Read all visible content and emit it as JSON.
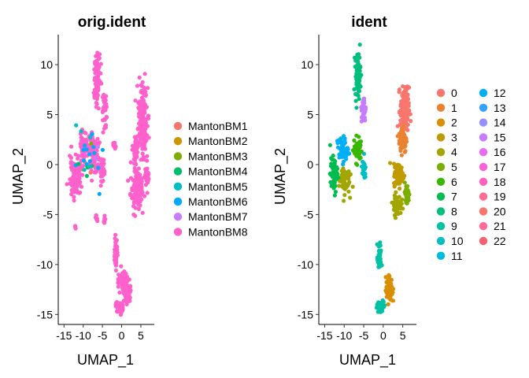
{
  "chart_data": [
    {
      "type": "scatter",
      "title": "orig.ident",
      "xlabel": "UMAP_1",
      "ylabel": "UMAP_2",
      "xlim": [
        -16.5,
        8.5
      ],
      "ylim": [
        -16,
        13
      ],
      "x_ticks": [
        -15,
        -10,
        -5,
        0,
        5
      ],
      "y_ticks": [
        -15,
        -10,
        -5,
        0,
        5,
        10
      ],
      "grid": false,
      "legend_position": "right",
      "series": [
        {
          "name": "MantonBM1",
          "color": "#F8766D"
        },
        {
          "name": "MantonBM2",
          "color": "#CD9600"
        },
        {
          "name": "MantonBM3",
          "color": "#7CAE00"
        },
        {
          "name": "MantonBM4",
          "color": "#00BE67"
        },
        {
          "name": "MantonBM5",
          "color": "#00BFC4"
        },
        {
          "name": "MantonBM6",
          "color": "#00A9FF"
        },
        {
          "name": "MantonBM7",
          "color": "#C77CFF"
        },
        {
          "name": "MantonBM8",
          "color": "#FF61CC"
        }
      ],
      "clusters": [
        {
          "center": [
            5.5,
            4.5
          ],
          "spread": [
            1.0,
            3.0
          ],
          "n": 200,
          "mix": [
            0,
            0,
            0,
            0,
            0,
            0,
            0,
            1
          ]
        },
        {
          "center": [
            3.5,
            1.5
          ],
          "spread": [
            0.6,
            1.5
          ],
          "n": 60,
          "mix": [
            0,
            0,
            0,
            0,
            0,
            0,
            0,
            1
          ]
        },
        {
          "center": [
            4.0,
            -2.5
          ],
          "spread": [
            1.5,
            1.6
          ],
          "n": 150,
          "mix": [
            0,
            0,
            0,
            0,
            0,
            0,
            0,
            1
          ]
        },
        {
          "center": [
            6.5,
            -1.0
          ],
          "spread": [
            0.6,
            0.8
          ],
          "n": 40,
          "mix": [
            0,
            0,
            0,
            0,
            0,
            0,
            0,
            1
          ]
        },
        {
          "center": [
            -6.5,
            8.5
          ],
          "spread": [
            0.8,
            2.5
          ],
          "n": 90,
          "mix": [
            0,
            0,
            0,
            0,
            0,
            0,
            0,
            1
          ]
        },
        {
          "center": [
            -4.5,
            6.0
          ],
          "spread": [
            0.5,
            1.5
          ],
          "n": 40,
          "mix": [
            0,
            0,
            0,
            0,
            0,
            0,
            0,
            1
          ]
        },
        {
          "center": [
            -7.5,
            1.2
          ],
          "spread": [
            1.5,
            1.8
          ],
          "n": 110,
          "mix": [
            0,
            0,
            0,
            0,
            0,
            0,
            0,
            1
          ]
        },
        {
          "center": [
            -10.0,
            2.0
          ],
          "spread": [
            0.8,
            1.2
          ],
          "n": 50,
          "mix": [
            0,
            0,
            0,
            0,
            0,
            0,
            0,
            1
          ]
        },
        {
          "center": [
            -12.0,
            -1.3
          ],
          "spread": [
            1.3,
            1.6
          ],
          "n": 120,
          "mix": [
            0,
            0,
            0,
            0,
            0,
            0,
            0,
            1
          ]
        },
        {
          "center": [
            -5.0,
            -0.5
          ],
          "spread": [
            0.6,
            1.0
          ],
          "n": 50,
          "mix": [
            0,
            0,
            0,
            0,
            0,
            0,
            0,
            1
          ]
        },
        {
          "center": [
            -2.0,
            2.0
          ],
          "spread": [
            0.5,
            0.3
          ],
          "n": 15,
          "mix": [
            0,
            0,
            0,
            0,
            0,
            0,
            0,
            1
          ]
        },
        {
          "center": [
            -1.5,
            -9.0
          ],
          "spread": [
            0.4,
            1.3
          ],
          "n": 50,
          "mix": [
            0,
            0,
            0,
            0,
            0,
            0,
            0,
            1
          ]
        },
        {
          "center": [
            0.5,
            -11.5
          ],
          "spread": [
            1.0,
            1.0
          ],
          "n": 60,
          "mix": [
            0,
            0,
            0,
            0,
            0,
            0,
            0,
            1
          ]
        },
        {
          "center": [
            1.5,
            -13.0
          ],
          "spread": [
            0.7,
            0.8
          ],
          "n": 70,
          "mix": [
            0,
            0,
            0,
            0,
            0,
            0,
            0,
            1
          ]
        },
        {
          "center": [
            -0.5,
            -14.3
          ],
          "spread": [
            1.0,
            0.5
          ],
          "n": 50,
          "mix": [
            0,
            0,
            0,
            0,
            0,
            0,
            0,
            1
          ]
        },
        {
          "center": [
            -6.5,
            -5.3
          ],
          "spread": [
            0.3,
            0.4
          ],
          "n": 8,
          "mix": [
            0,
            0,
            0,
            0,
            0,
            0,
            0,
            1
          ]
        },
        {
          "center": [
            -4.5,
            -5.5
          ],
          "spread": [
            0.3,
            0.4
          ],
          "n": 8,
          "mix": [
            0,
            0,
            0,
            0,
            0,
            0,
            0,
            1
          ]
        },
        {
          "center": [
            -12.0,
            -6.2
          ],
          "spread": [
            0.2,
            0.2
          ],
          "n": 3,
          "mix": [
            0,
            0,
            0,
            0,
            0,
            0,
            0,
            1
          ]
        },
        {
          "center": [
            -9.0,
            0.0
          ],
          "spread": [
            3.5,
            2.5
          ],
          "n": 30,
          "mix": [
            0.05,
            0.02,
            0.05,
            0.05,
            0.15,
            0.6,
            0.05,
            0.03
          ]
        }
      ]
    },
    {
      "type": "scatter",
      "title": "ident",
      "xlabel": "UMAP_1",
      "ylabel": "UMAP_2",
      "xlim": [
        -16.5,
        8.5
      ],
      "ylim": [
        -16,
        13
      ],
      "x_ticks": [
        -15,
        -10,
        -5,
        0,
        5
      ],
      "y_ticks": [
        -15,
        -10,
        -5,
        0,
        5,
        10
      ],
      "grid": false,
      "legend_position": "right",
      "legend_columns": 2,
      "series": [
        {
          "name": "0",
          "color": "#F8766D"
        },
        {
          "name": "1",
          "color": "#EA8331"
        },
        {
          "name": "2",
          "color": "#D89000"
        },
        {
          "name": "3",
          "color": "#C09B00"
        },
        {
          "name": "4",
          "color": "#A3A500"
        },
        {
          "name": "5",
          "color": "#7CAE00"
        },
        {
          "name": "6",
          "color": "#39B600"
        },
        {
          "name": "7",
          "color": "#00BB4E"
        },
        {
          "name": "8",
          "color": "#00BF7D"
        },
        {
          "name": "9",
          "color": "#00C1A3"
        },
        {
          "name": "10",
          "color": "#00BFC4"
        },
        {
          "name": "11",
          "color": "#00BAE0"
        },
        {
          "name": "12",
          "color": "#00B0F6"
        },
        {
          "name": "13",
          "color": "#35A2FF"
        },
        {
          "name": "14",
          "color": "#9590FF"
        },
        {
          "name": "15",
          "color": "#C77CFF"
        },
        {
          "name": "16",
          "color": "#E76BF3"
        },
        {
          "name": "17",
          "color": "#FA62DB"
        },
        {
          "name": "18",
          "color": "#FF62BC"
        },
        {
          "name": "19",
          "color": "#FF6C91"
        },
        {
          "name": "20",
          "color": "#F8766D"
        },
        {
          "name": "21",
          "color": "#FF6A98"
        },
        {
          "name": "22",
          "color": "#F5616F"
        }
      ],
      "clusters": [
        {
          "center": [
            5.5,
            5.5
          ],
          "spread": [
            1.0,
            2.0
          ],
          "n": 160,
          "color_index": 0
        },
        {
          "center": [
            5.0,
            2.5
          ],
          "spread": [
            0.9,
            1.2
          ],
          "n": 90,
          "color_index": 1
        },
        {
          "center": [
            4.0,
            -1.0
          ],
          "spread": [
            1.2,
            1.0
          ],
          "n": 80,
          "color_index": 3
        },
        {
          "center": [
            3.5,
            -4.0
          ],
          "spread": [
            1.0,
            0.9
          ],
          "n": 70,
          "color_index": 4
        },
        {
          "center": [
            6.0,
            -3.0
          ],
          "spread": [
            0.6,
            1.0
          ],
          "n": 40,
          "color_index": 5
        },
        {
          "center": [
            -6.5,
            9.0
          ],
          "spread": [
            0.6,
            2.0
          ],
          "n": 70,
          "color_index": 8
        },
        {
          "center": [
            -5.0,
            5.5
          ],
          "spread": [
            0.5,
            1.3
          ],
          "n": 35,
          "color_index": 15
        },
        {
          "center": [
            -10.5,
            1.5
          ],
          "spread": [
            1.3,
            1.2
          ],
          "n": 60,
          "color_index": 12
        },
        {
          "center": [
            -12.5,
            -1.0
          ],
          "spread": [
            1.0,
            1.5
          ],
          "n": 60,
          "color_index": 7
        },
        {
          "center": [
            -10.0,
            -1.5
          ],
          "spread": [
            1.2,
            1.3
          ],
          "n": 60,
          "color_index": 4
        },
        {
          "center": [
            -6.5,
            1.5
          ],
          "spread": [
            1.0,
            1.2
          ],
          "n": 50,
          "color_index": 6
        },
        {
          "center": [
            -5.0,
            -0.5
          ],
          "spread": [
            0.5,
            0.8
          ],
          "n": 25,
          "color_index": 10
        },
        {
          "center": [
            -1.0,
            -9.5
          ],
          "spread": [
            0.5,
            1.3
          ],
          "n": 40,
          "color_index": 9
        },
        {
          "center": [
            1.5,
            -12.5
          ],
          "spread": [
            0.8,
            1.2
          ],
          "n": 60,
          "color_index": 2
        },
        {
          "center": [
            -0.5,
            -14.2
          ],
          "spread": [
            1.0,
            0.5
          ],
          "n": 40,
          "color_index": 9
        }
      ]
    }
  ]
}
